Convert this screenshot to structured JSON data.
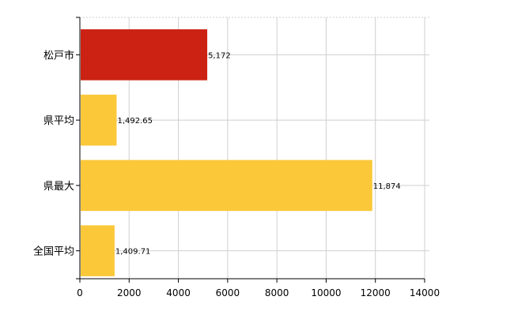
{
  "chart_data": {
    "type": "bar",
    "orientation": "horizontal",
    "categories": [
      "松戸市",
      "県平均",
      "県最大",
      "全国平均"
    ],
    "values": [
      5172,
      1492.65,
      11874,
      1409.71
    ],
    "data_labels": [
      "5,172",
      "1,492.65",
      "11,874",
      "1,409.71"
    ],
    "colors": [
      "#cc2214",
      "#fbc83a",
      "#fbc83a",
      "#fbc83a"
    ],
    "title": "",
    "xlabel": "",
    "ylabel": "",
    "xlim": [
      0,
      14000
    ],
    "x_ticks": [
      0,
      2000,
      4000,
      6000,
      8000,
      10000,
      12000,
      14000
    ],
    "x_tick_labels": [
      "0",
      "2000",
      "4000",
      "6000",
      "8000",
      "10000",
      "12000",
      "14000"
    ],
    "grid": true,
    "legend": "none"
  }
}
